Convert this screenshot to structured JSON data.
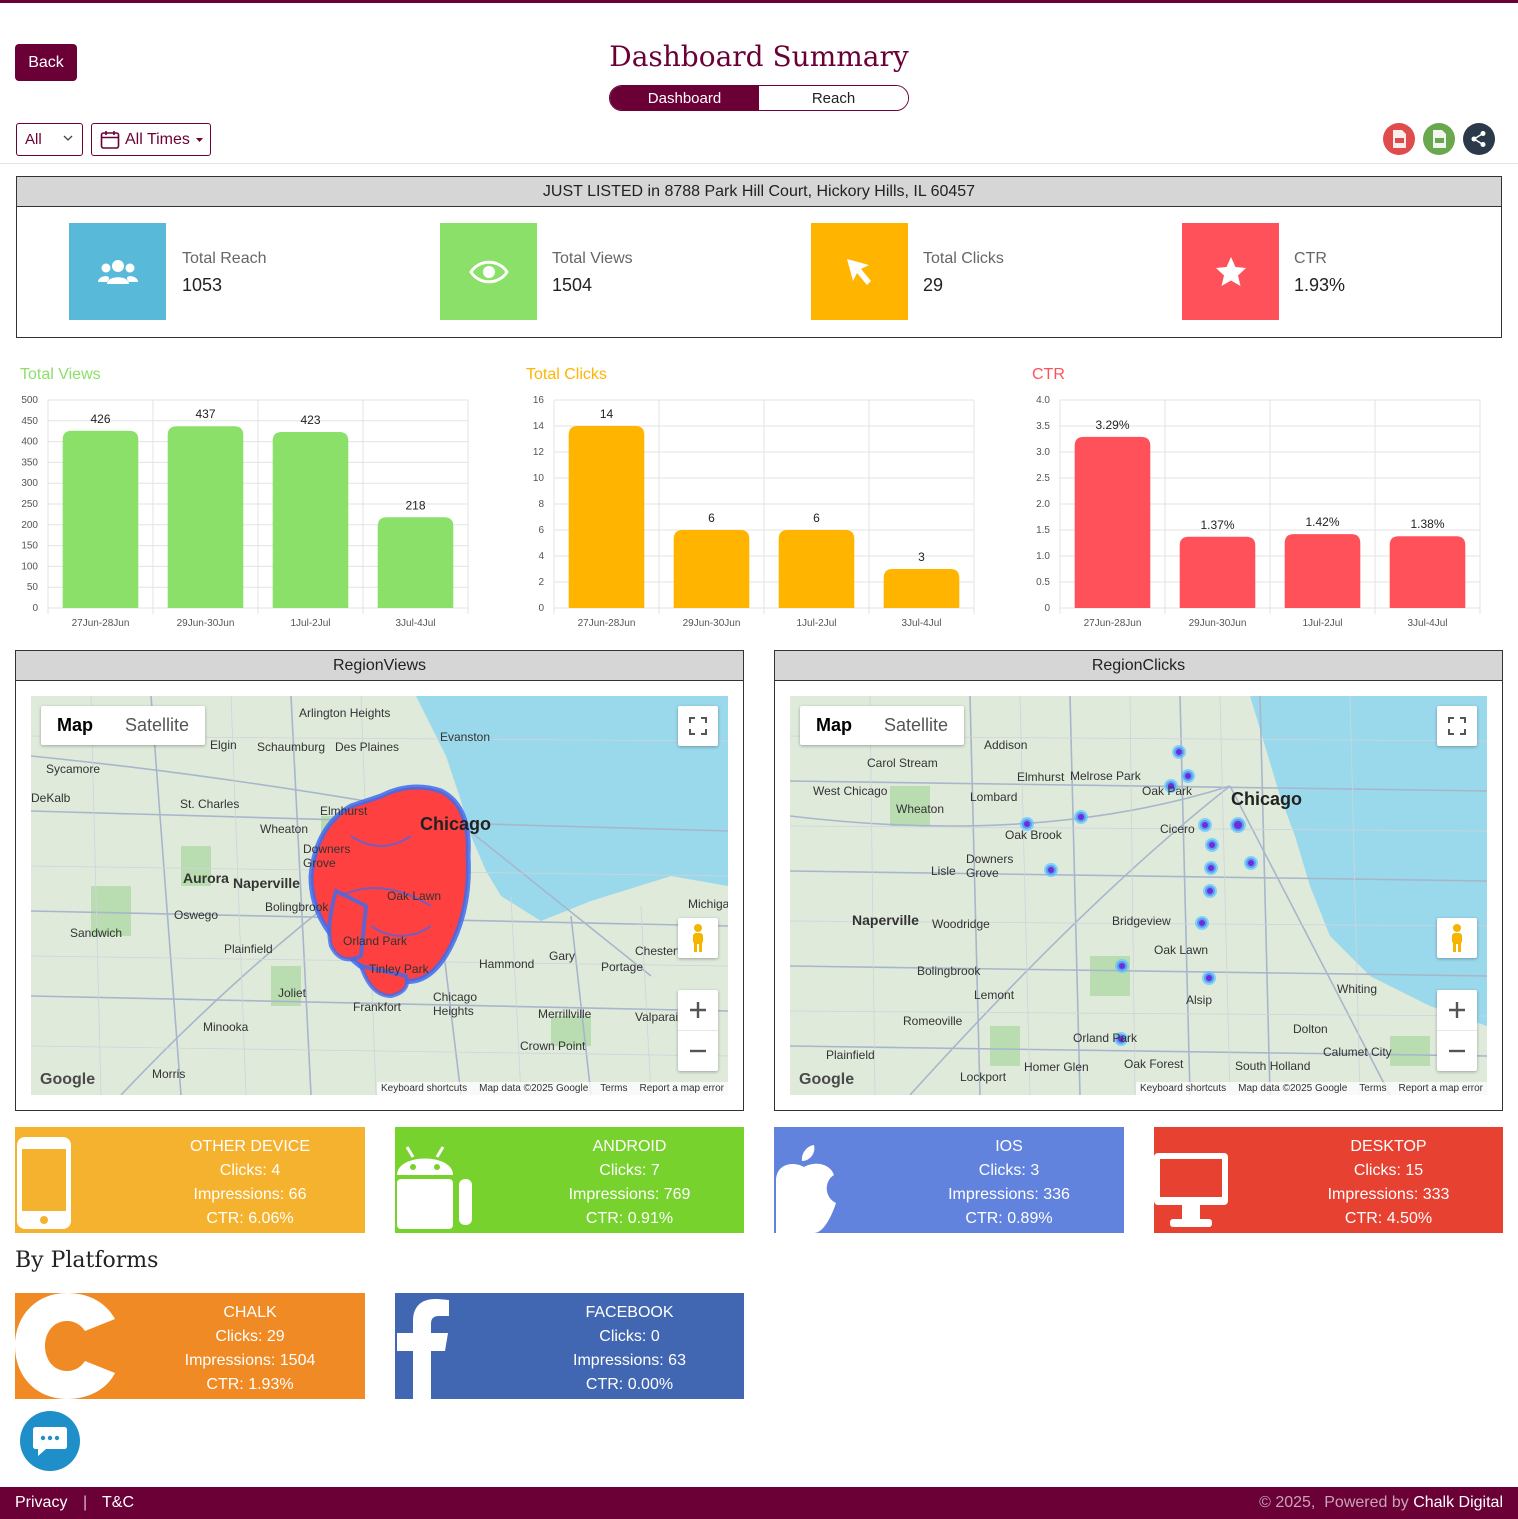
{
  "header": {
    "back_label": "Back",
    "title": "Dashboard Summary",
    "tabs": [
      {
        "label": "Dashboard"
      },
      {
        "label": "Reach"
      }
    ],
    "filter_select_value": "All",
    "time_button_label": "All Times"
  },
  "summary": {
    "listing_title": "JUST LISTED in 8788 Park Hill Court, Hickory Hills, IL 60457",
    "stats": [
      {
        "label": "Total Reach",
        "value": "1053",
        "color": "#59b9d9",
        "icon": "users-icon"
      },
      {
        "label": "Total Views",
        "value": "1504",
        "color": "#8ae068",
        "icon": "eye-icon"
      },
      {
        "label": "Total Clicks",
        "value": "29",
        "color": "#ffb400",
        "icon": "cursor-icon"
      },
      {
        "label": "CTR",
        "value": "1.93%",
        "color": "#ff5159",
        "icon": "star-icon"
      }
    ]
  },
  "chart_data": [
    {
      "type": "bar",
      "title": "Total Views",
      "color": "#8ae068",
      "categories": [
        "27Jun-28Jun",
        "29Jun-30Jun",
        "1Jul-2Jul",
        "3Jul-4Jul"
      ],
      "values": [
        426,
        437,
        423,
        218
      ],
      "value_labels": [
        "426",
        "437",
        "423",
        "218"
      ],
      "ylim": [
        0,
        500
      ],
      "yticks": [
        "0",
        "50",
        "100",
        "150",
        "200",
        "250",
        "300",
        "350",
        "400",
        "450",
        "500"
      ],
      "grid": true
    },
    {
      "type": "bar",
      "title": "Total Clicks",
      "color": "#ffb400",
      "categories": [
        "27Jun-28Jun",
        "29Jun-30Jun",
        "1Jul-2Jul",
        "3Jul-4Jul"
      ],
      "values": [
        14,
        6,
        6,
        3
      ],
      "value_labels": [
        "14",
        "6",
        "6",
        "3"
      ],
      "ylim": [
        0,
        16
      ],
      "yticks": [
        "0",
        "2",
        "4",
        "6",
        "8",
        "10",
        "12",
        "14",
        "16"
      ],
      "grid": true
    },
    {
      "type": "bar",
      "title": "CTR",
      "color": "#ff5159",
      "categories": [
        "27Jun-28Jun",
        "29Jun-30Jun",
        "1Jul-2Jul",
        "3Jul-4Jul"
      ],
      "values": [
        3.29,
        1.37,
        1.42,
        1.38
      ],
      "value_labels": [
        "3.29%",
        "1.37%",
        "1.42%",
        "1.38%"
      ],
      "ylim": [
        0,
        4
      ],
      "yticks": [
        "0",
        "0.5",
        "1.0",
        "1.5",
        "2.0",
        "2.5",
        "3.0",
        "3.5",
        "4.0"
      ],
      "grid": true
    }
  ],
  "regions": {
    "views_title": "RegionViews",
    "clicks_title": "RegionClicks",
    "map_label": "Map",
    "satellite_label": "Satellite",
    "attribution": {
      "shortcuts": "Keyboard shortcuts",
      "data": "Map data ©2025 Google",
      "terms": "Terms",
      "report": "Report a map error"
    },
    "google": "Google",
    "views_places": [
      "Arlington Heights",
      "Schaumburg",
      "Des Plaines",
      "Evanston",
      "Elgin",
      "Sycamore",
      "DeKalb",
      "St. Charles",
      "Chicago",
      "Wheaton",
      "Elmhurst",
      "Downers Grove",
      "Aurora",
      "Naperville",
      "Oswego",
      "Bolingbrook",
      "Oak Lawn",
      "Sandwich",
      "Plainfield",
      "Orland Park",
      "Tinley Park",
      "Hammond",
      "Gary",
      "Portage",
      "Chesterton",
      "Michigan City",
      "Joliet",
      "Chicago Heights",
      "Frankfort",
      "Merrillville",
      "Valparaiso",
      "Minooka",
      "Crown Point",
      "Morris"
    ],
    "clicks_places": [
      "Addison",
      "Carol Stream",
      "Elmhurst",
      "Melrose Park",
      "Oak Park",
      "West Chicago",
      "Lombard",
      "Wheaton",
      "Chicago",
      "Oak Brook",
      "Cicero",
      "Downers Grove",
      "Lisle",
      "Naperville",
      "Woodridge",
      "Bridgeview",
      "Oak Lawn",
      "Bolingbrook",
      "Lemont",
      "Alsip",
      "Romeoville",
      "Whiting",
      "Dolton",
      "Plainfield",
      "Orland Park",
      "Calumet City",
      "South Holland",
      "Homer Glen",
      "Oak Forest",
      "Lockport"
    ]
  },
  "devices": [
    {
      "name": "OTHER DEVICE",
      "clicks": "Clicks: 4",
      "impressions": "Impressions: 66",
      "ctr": "CTR: 6.06%",
      "color": "#f5b22e",
      "icon": "mobile-icon"
    },
    {
      "name": "ANDROID",
      "clicks": "Clicks: 7",
      "impressions": "Impressions: 769",
      "ctr": "CTR: 0.91%",
      "color": "#78d22e",
      "icon": "android-icon"
    },
    {
      "name": "IOS",
      "clicks": "Clicks: 3",
      "impressions": "Impressions: 336",
      "ctr": "CTR: 0.89%",
      "color": "#6283dd",
      "icon": "apple-icon"
    },
    {
      "name": "DESKTOP",
      "clicks": "Clicks: 15",
      "impressions": "Impressions: 333",
      "ctr": "CTR: 4.50%",
      "color": "#e74132",
      "icon": "desktop-icon"
    }
  ],
  "platforms_title": "By Platforms",
  "platforms": [
    {
      "name": "CHALK",
      "clicks": "Clicks: 29",
      "impressions": "Impressions: 1504",
      "ctr": "CTR: 1.93%",
      "color": "#f08a24",
      "icon": "chalk-c-icon"
    },
    {
      "name": "FACEBOOK",
      "clicks": "Clicks: 0",
      "impressions": "Impressions: 63",
      "ctr": "CTR: 0.00%",
      "color": "#4267b2",
      "icon": "facebook-icon"
    }
  ],
  "footer": {
    "privacy": "Privacy",
    "separator": "|",
    "tc": "T&C",
    "copyright": "© 2025,  Powered by",
    "brand": "Chalk Digital"
  }
}
